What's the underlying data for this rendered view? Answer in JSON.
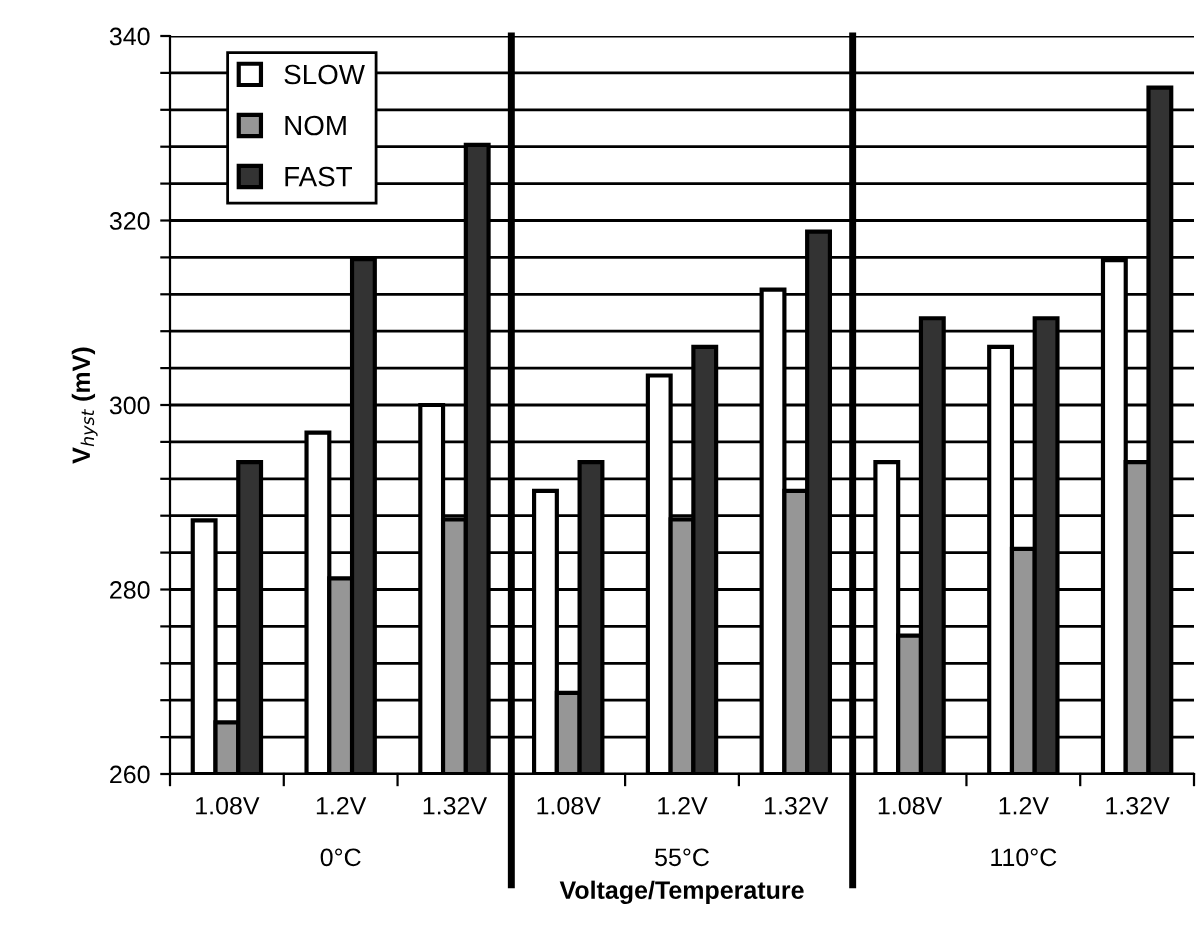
{
  "chart_data": {
    "type": "bar",
    "xlabel": "Voltage/Temperature",
    "ylabel": "V$_{hyst}$ (mV)",
    "categories": [
      "1.08V",
      "1.2V",
      "1.32V",
      "1.08V",
      "1.2V",
      "1.32V",
      "1.08V",
      "1.2V",
      "1.32V"
    ],
    "series": [
      {
        "name": "SLOW",
        "color": "#ffffff",
        "values": [
          287.5,
          297,
          300,
          290.7,
          303.2,
          312.5,
          293.8,
          306.3,
          315.7
        ]
      },
      {
        "name": "NOM",
        "color": "#969696",
        "values": [
          265.6,
          281.2,
          287.6,
          268.8,
          287.6,
          290.7,
          275,
          284.4,
          293.8
        ]
      },
      {
        "name": "FAST",
        "color": "#333333",
        "values": [
          293.8,
          315.8,
          328.2,
          293.8,
          306.3,
          318.8,
          309.4,
          309.4,
          334.4
        ]
      }
    ],
    "annotations": [
      "0°C",
      "55°C",
      "110°C"
    ],
    "ylim": [
      260,
      340
    ],
    "yticks": [
      260,
      {
        "value": 264,
        "label": null
      },
      {
        "value": 268,
        "label": null
      },
      {
        "value": 272,
        "label": null
      },
      {
        "value": 276,
        "label": null
      },
      280,
      {
        "value": 284,
        "label": null
      },
      {
        "value": 288,
        "label": null
      },
      {
        "value": 292,
        "label": null
      },
      {
        "value": 296,
        "label": null
      },
      300,
      {
        "value": 304,
        "label": null
      },
      {
        "value": 308,
        "label": null
      },
      {
        "value": 312,
        "label": null
      },
      {
        "value": 316,
        "label": null
      },
      320,
      {
        "value": 324,
        "label": null
      },
      {
        "value": 328,
        "label": null
      },
      {
        "value": 332,
        "label": null
      },
      {
        "value": 336,
        "label": null
      },
      340
    ],
    "grid": "y",
    "legend": "top left"
  }
}
